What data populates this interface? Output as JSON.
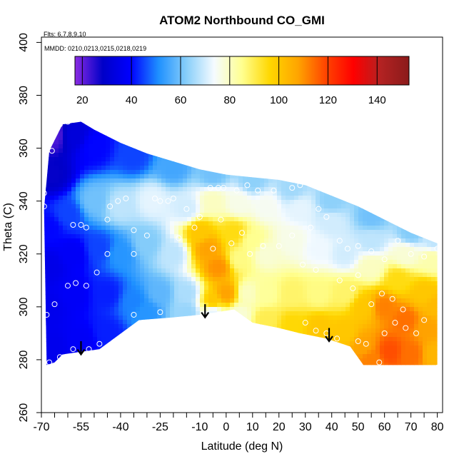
{
  "chart_data": {
    "type": "heatmap",
    "title": "ATOM2 Northbound CO_GMI",
    "xlabel": "Latitude (deg N)",
    "ylabel": "Theta (C)",
    "xlim": [
      -70,
      82
    ],
    "ylim": [
      260,
      402
    ],
    "xticks": [
      -70,
      -55,
      -40,
      -25,
      -10,
      0,
      10,
      20,
      30,
      40,
      50,
      60,
      70,
      80
    ],
    "xticks_minor": [
      -65,
      -60,
      -50,
      -45,
      -35,
      -30,
      -20,
      -15,
      -5,
      5,
      15,
      25,
      35,
      45,
      55,
      65,
      75
    ],
    "yticks": [
      260,
      280,
      300,
      320,
      340,
      360,
      380,
      400
    ],
    "annotations": {
      "flights": "Flts: 6,7,8,9,10",
      "dates": "MMDD: 0210,0213,0215,0218,0219"
    },
    "colorbar": {
      "min": 17,
      "max": 153,
      "ticks": [
        20,
        40,
        60,
        80,
        100,
        120,
        140
      ],
      "colors": [
        "#8a2be2",
        "#0000c8",
        "#0000ff",
        "#1e90ff",
        "#87cefa",
        "#f5fbff",
        "#ffff90",
        "#ffd700",
        "#ffa500",
        "#ff4500",
        "#ff0000",
        "#b22222",
        "#8b1a1a"
      ]
    },
    "field": {
      "boundary": [
        [
          -69,
          337
        ],
        [
          -67,
          359
        ],
        [
          -62,
          369
        ],
        [
          -55,
          370
        ],
        [
          -50,
          367
        ],
        [
          -40,
          362
        ],
        [
          -30,
          358
        ],
        [
          -20,
          355
        ],
        [
          -10,
          352
        ],
        [
          0,
          350
        ],
        [
          10,
          349
        ],
        [
          20,
          348
        ],
        [
          30,
          346
        ],
        [
          40,
          342
        ],
        [
          50,
          338
        ],
        [
          60,
          333
        ],
        [
          70,
          328
        ],
        [
          80,
          324
        ],
        [
          80,
          278
        ],
        [
          72,
          278
        ],
        [
          56,
          278
        ],
        [
          52,
          278
        ],
        [
          47,
          285
        ],
        [
          38,
          288
        ],
        [
          28,
          290
        ],
        [
          20,
          292
        ],
        [
          10,
          294
        ],
        [
          3,
          299
        ],
        [
          -10,
          297
        ],
        [
          -20,
          296
        ],
        [
          -33,
          295
        ],
        [
          -48,
          284
        ],
        [
          -55,
          283
        ],
        [
          -62,
          282
        ],
        [
          -65,
          279
        ],
        [
          -68,
          278
        ]
      ],
      "values": [
        {
          "lat": -65,
          "theta": 365,
          "co": 22
        },
        {
          "lat": -66,
          "theta": 350,
          "co": 28
        },
        {
          "lat": -58,
          "theta": 365,
          "co": 32
        },
        {
          "lat": -50,
          "theta": 360,
          "co": 40
        },
        {
          "lat": -35,
          "theta": 357,
          "co": 45
        },
        {
          "lat": -20,
          "theta": 353,
          "co": 55
        },
        {
          "lat": -5,
          "theta": 350,
          "co": 60
        },
        {
          "lat": 10,
          "theta": 348,
          "co": 63
        },
        {
          "lat": 25,
          "theta": 345,
          "co": 65
        },
        {
          "lat": 40,
          "theta": 340,
          "co": 63
        },
        {
          "lat": 55,
          "theta": 334,
          "co": 60
        },
        {
          "lat": 70,
          "theta": 328,
          "co": 62
        },
        {
          "lat": 79,
          "theta": 325,
          "co": 68
        },
        {
          "lat": -67,
          "theta": 330,
          "co": 40
        },
        {
          "lat": -60,
          "theta": 335,
          "co": 45
        },
        {
          "lat": -50,
          "theta": 340,
          "co": 60
        },
        {
          "lat": -40,
          "theta": 338,
          "co": 68
        },
        {
          "lat": -28,
          "theta": 340,
          "co": 72
        },
        {
          "lat": -15,
          "theta": 337,
          "co": 70
        },
        {
          "lat": -5,
          "theta": 340,
          "co": 80
        },
        {
          "lat": 5,
          "theta": 339,
          "co": 76
        },
        {
          "lat": 15,
          "theta": 338,
          "co": 75
        },
        {
          "lat": 28,
          "theta": 337,
          "co": 72
        },
        {
          "lat": 40,
          "theta": 332,
          "co": 70
        },
        {
          "lat": 55,
          "theta": 325,
          "co": 68
        },
        {
          "lat": 68,
          "theta": 320,
          "co": 78
        },
        {
          "lat": 78,
          "theta": 318,
          "co": 82
        },
        {
          "lat": -67,
          "theta": 315,
          "co": 35
        },
        {
          "lat": -58,
          "theta": 320,
          "co": 38
        },
        {
          "lat": -48,
          "theta": 322,
          "co": 45
        },
        {
          "lat": -40,
          "theta": 320,
          "co": 52
        },
        {
          "lat": -30,
          "theta": 324,
          "co": 62
        },
        {
          "lat": -20,
          "theta": 320,
          "co": 68
        },
        {
          "lat": -10,
          "theta": 328,
          "co": 100
        },
        {
          "lat": -7,
          "theta": 322,
          "co": 108
        },
        {
          "lat": -3,
          "theta": 315,
          "co": 110
        },
        {
          "lat": 0,
          "theta": 305,
          "co": 108
        },
        {
          "lat": 3,
          "theta": 328,
          "co": 95
        },
        {
          "lat": 5,
          "theta": 318,
          "co": 86
        },
        {
          "lat": 10,
          "theta": 325,
          "co": 85
        },
        {
          "lat": 15,
          "theta": 320,
          "co": 78
        },
        {
          "lat": 25,
          "theta": 325,
          "co": 76
        },
        {
          "lat": 35,
          "theta": 322,
          "co": 73
        },
        {
          "lat": 45,
          "theta": 320,
          "co": 70
        },
        {
          "lat": 55,
          "theta": 315,
          "co": 80
        },
        {
          "lat": 65,
          "theta": 310,
          "co": 95
        },
        {
          "lat": 75,
          "theta": 305,
          "co": 100
        },
        {
          "lat": 79,
          "theta": 300,
          "co": 103
        },
        {
          "lat": -67,
          "theta": 300,
          "co": 36
        },
        {
          "lat": -58,
          "theta": 305,
          "co": 38
        },
        {
          "lat": -45,
          "theta": 305,
          "co": 42
        },
        {
          "lat": -35,
          "theta": 302,
          "co": 50
        },
        {
          "lat": -25,
          "theta": 305,
          "co": 58
        },
        {
          "lat": -15,
          "theta": 305,
          "co": 66
        },
        {
          "lat": -5,
          "theta": 302,
          "co": 100
        },
        {
          "lat": 8,
          "theta": 305,
          "co": 80
        },
        {
          "lat": 15,
          "theta": 305,
          "co": 84
        },
        {
          "lat": 25,
          "theta": 305,
          "co": 88
        },
        {
          "lat": 35,
          "theta": 305,
          "co": 86
        },
        {
          "lat": 45,
          "theta": 305,
          "co": 88
        },
        {
          "lat": 52,
          "theta": 300,
          "co": 100
        },
        {
          "lat": 60,
          "theta": 300,
          "co": 112
        },
        {
          "lat": 68,
          "theta": 295,
          "co": 114
        },
        {
          "lat": 76,
          "theta": 292,
          "co": 108
        },
        {
          "lat": -66,
          "theta": 285,
          "co": 36
        },
        {
          "lat": -55,
          "theta": 287,
          "co": 38
        },
        {
          "lat": -45,
          "theta": 290,
          "co": 42
        },
        {
          "lat": -30,
          "theta": 298,
          "co": 52
        },
        {
          "lat": -15,
          "theta": 298,
          "co": 64
        },
        {
          "lat": -5,
          "theta": 298,
          "co": 72
        },
        {
          "lat": 5,
          "theta": 297,
          "co": 78
        },
        {
          "lat": 15,
          "theta": 295,
          "co": 90
        },
        {
          "lat": 25,
          "theta": 293,
          "co": 96
        },
        {
          "lat": 35,
          "theta": 292,
          "co": 100
        },
        {
          "lat": 45,
          "theta": 290,
          "co": 100
        },
        {
          "lat": 52,
          "theta": 285,
          "co": 108
        },
        {
          "lat": 55,
          "theta": 280,
          "co": 112
        },
        {
          "lat": 62,
          "theta": 283,
          "co": 118
        },
        {
          "lat": 70,
          "theta": 282,
          "co": 114
        },
        {
          "lat": 79,
          "theta": 282,
          "co": 104
        }
      ]
    },
    "observations": [
      [
        -68,
        369
      ],
      [
        -63,
        369
      ],
      [
        -60,
        370
      ],
      [
        -66,
        359
      ],
      [
        -69,
        343
      ],
      [
        -69,
        338
      ],
      [
        -55,
        331
      ],
      [
        -53,
        330
      ],
      [
        -58,
        331
      ],
      [
        -41,
        340
      ],
      [
        -38,
        341
      ],
      [
        -44,
        338
      ],
      [
        -25,
        340
      ],
      [
        -22,
        340
      ],
      [
        -20,
        341
      ],
      [
        -27,
        341
      ],
      [
        -15,
        337
      ],
      [
        -6,
        345
      ],
      [
        -3,
        345
      ],
      [
        -1,
        345
      ],
      [
        4,
        344
      ],
      [
        8,
        346
      ],
      [
        12,
        344
      ],
      [
        18,
        344
      ],
      [
        25,
        345
      ],
      [
        28,
        346
      ],
      [
        -45,
        333
      ],
      [
        -35,
        329
      ],
      [
        -30,
        327
      ],
      [
        -18,
        326
      ],
      [
        -12,
        330
      ],
      [
        -10,
        334
      ],
      [
        -2,
        333
      ],
      [
        -5,
        322
      ],
      [
        2,
        324
      ],
      [
        6,
        328
      ],
      [
        9,
        320
      ],
      [
        14,
        323
      ],
      [
        20,
        323
      ],
      [
        25,
        327
      ],
      [
        32,
        330
      ],
      [
        35,
        337
      ],
      [
        38,
        334
      ],
      [
        43,
        325
      ],
      [
        46,
        322
      ],
      [
        50,
        323
      ],
      [
        55,
        321
      ],
      [
        60,
        318
      ],
      [
        65,
        325
      ],
      [
        70,
        320
      ],
      [
        75,
        319
      ],
      [
        80,
        322
      ],
      [
        -60,
        308
      ],
      [
        -57,
        309
      ],
      [
        -53,
        308
      ],
      [
        -49,
        313
      ],
      [
        -45,
        320
      ],
      [
        -35,
        320
      ],
      [
        -25,
        298
      ],
      [
        -65,
        301
      ],
      [
        -68,
        297
      ],
      [
        -67,
        279
      ],
      [
        -63,
        281
      ],
      [
        -58,
        284
      ],
      [
        -52,
        284
      ],
      [
        -48,
        286
      ],
      [
        -35,
        297
      ],
      [
        29,
        316
      ],
      [
        34,
        314
      ],
      [
        43,
        310
      ],
      [
        48,
        307
      ],
      [
        50,
        312
      ],
      [
        55,
        301
      ],
      [
        59,
        305
      ],
      [
        63,
        303
      ],
      [
        67,
        299
      ],
      [
        60,
        290
      ],
      [
        64,
        294
      ],
      [
        68,
        292
      ],
      [
        72,
        290
      ],
      [
        75,
        295
      ],
      [
        50,
        287
      ],
      [
        53,
        286
      ],
      [
        58,
        279
      ],
      [
        30,
        294
      ],
      [
        34,
        291
      ],
      [
        38,
        290
      ],
      [
        42,
        288
      ],
      [
        80,
        277
      ]
    ],
    "markers": [
      {
        "lat": -55,
        "theta_start": 287,
        "theta_end": 282
      },
      {
        "lat": -8,
        "theta_start": 301,
        "theta_end": 296
      },
      {
        "lat": 39,
        "theta_start": 292,
        "theta_end": 287
      }
    ]
  }
}
